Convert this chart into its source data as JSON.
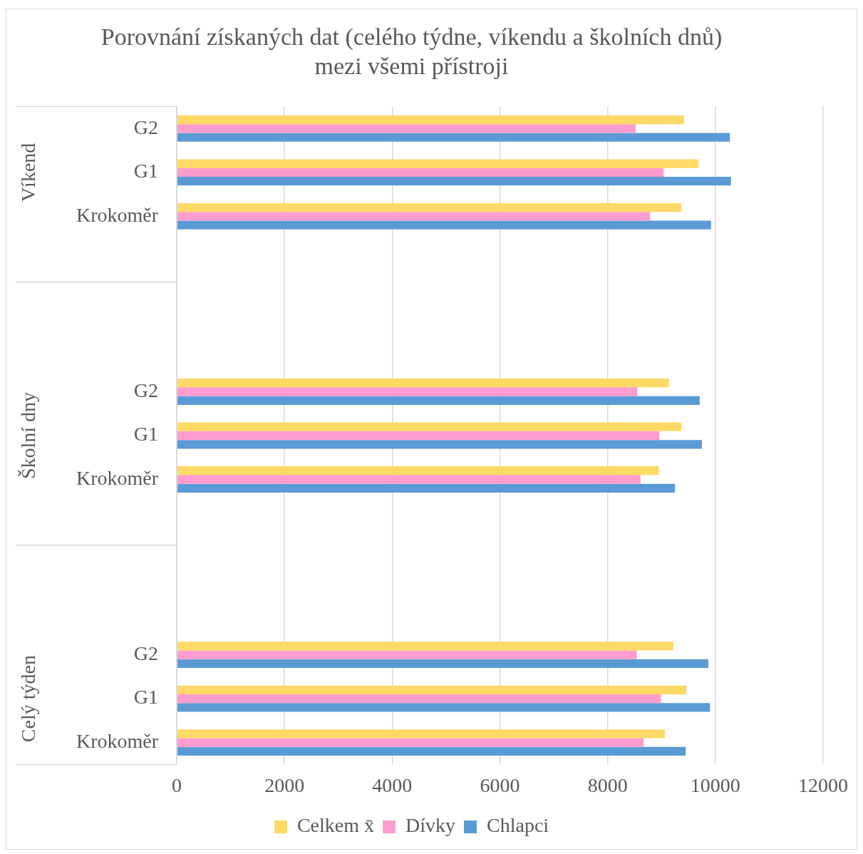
{
  "chart_data": {
    "type": "bar",
    "orientation": "horizontal",
    "title": "Porovnání získaných dat (celého týdne, víkendu a školních dnů) mezi všemi přístroji",
    "categories": [
      "G2",
      "G1",
      "Krokoměr",
      null,
      null,
      null,
      "G2",
      "G1",
      "Krokoměr",
      null,
      null,
      null,
      "G2",
      "G1",
      "Krokoměr"
    ],
    "series": [
      {
        "name": "Celkem x̄",
        "color": "#ffd966",
        "values": [
          9420,
          9690,
          9370,
          null,
          null,
          null,
          9140,
          9370,
          8950,
          null,
          null,
          null,
          9220,
          9460,
          9060
        ]
      },
      {
        "name": "Dívky",
        "color": "#ff9ccf",
        "values": [
          8520,
          9040,
          8790,
          null,
          null,
          null,
          8550,
          8960,
          8610,
          null,
          null,
          null,
          8540,
          8990,
          8670
        ]
      },
      {
        "name": "Chlapci",
        "color": "#5b9bd5",
        "values": [
          10270,
          10290,
          9920,
          null,
          null,
          null,
          9710,
          9750,
          9250,
          null,
          null,
          null,
          9870,
          9900,
          9450
        ]
      }
    ],
    "annotations": [
      "Víkend",
      "Školní dny",
      "Celý týden"
    ],
    "xlim": [
      0,
      12000
    ],
    "xticks": [
      0,
      2000,
      4000,
      6000,
      8000,
      10000,
      12000
    ],
    "grid": "x",
    "legend": "bottom"
  }
}
